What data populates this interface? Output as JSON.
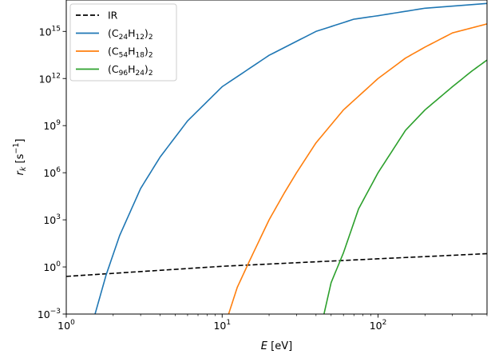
{
  "chart_data": {
    "type": "line",
    "xlabel": "E [eV]",
    "xlabel_parts": {
      "var": "E",
      "unit": " [eV]"
    },
    "ylabel": "r_k [s^-1]",
    "xscale": "log",
    "yscale": "log",
    "xlim": [
      1,
      500
    ],
    "ylim": [
      0.001,
      1e+17
    ],
    "x_ticks": [
      {
        "value": 1,
        "base": "10",
        "exp": "0"
      },
      {
        "value": 10,
        "base": "10",
        "exp": "1"
      },
      {
        "value": 100,
        "base": "10",
        "exp": "2"
      }
    ],
    "y_ticks": [
      {
        "value": 0.001,
        "base": "10",
        "exp": "−3"
      },
      {
        "value": 1,
        "base": "10",
        "exp": "0"
      },
      {
        "value": 1000,
        "base": "10",
        "exp": "3"
      },
      {
        "value": 1000000,
        "base": "10",
        "exp": "6"
      },
      {
        "value": 1000000000,
        "base": "10",
        "exp": "9"
      },
      {
        "value": 1000000000000,
        "base": "10",
        "exp": "12"
      },
      {
        "value": 1000000000000000,
        "base": "10",
        "exp": "15"
      }
    ],
    "legend_position": "top-left",
    "grid": false,
    "series": [
      {
        "name": "IR",
        "legend": [
          {
            "t": "IR",
            "s": ""
          }
        ],
        "color": "#000000",
        "dash": "dashed",
        "points": [
          [
            1,
            0.25
          ],
          [
            10,
            1.1
          ],
          [
            100,
            3.3
          ],
          [
            500,
            7.0
          ]
        ]
      },
      {
        "name": "(C24H12)2",
        "legend": [
          {
            "t": "(C",
            "s": ""
          },
          {
            "t": "24",
            "s": "sub"
          },
          {
            "t": "H",
            "s": ""
          },
          {
            "t": "12",
            "s": "sub"
          },
          {
            "t": ")",
            "s": ""
          },
          {
            "t": "2",
            "s": "sub"
          }
        ],
        "color": "#1f77b4",
        "dash": "solid",
        "points": [
          [
            1.53,
            0.001
          ],
          [
            1.8,
            0.3
          ],
          [
            2.2,
            100
          ],
          [
            3,
            100000
          ],
          [
            4,
            10000000
          ],
          [
            6,
            2000000000
          ],
          [
            10,
            300000000000
          ],
          [
            20,
            30000000000000
          ],
          [
            40,
            1000000000000000
          ],
          [
            70,
            6000000000000000
          ],
          [
            100,
            10000000000000000
          ],
          [
            200,
            30000000000000000
          ],
          [
            500,
            60000000000000000
          ]
        ]
      },
      {
        "name": "(C54H18)2",
        "legend": [
          {
            "t": "(C",
            "s": ""
          },
          {
            "t": "54",
            "s": "sub"
          },
          {
            "t": "H",
            "s": ""
          },
          {
            "t": "18",
            "s": "sub"
          },
          {
            "t": ")",
            "s": ""
          },
          {
            "t": "2",
            "s": "sub"
          }
        ],
        "color": "#ff7f0e",
        "dash": "solid",
        "points": [
          [
            11,
            0.001
          ],
          [
            12.5,
            0.05
          ],
          [
            15,
            2.5
          ],
          [
            20,
            1000
          ],
          [
            25,
            50000
          ],
          [
            30,
            1000000
          ],
          [
            40,
            80000000
          ],
          [
            60,
            10000000000
          ],
          [
            100,
            1000000000000
          ],
          [
            150,
            20000000000000
          ],
          [
            200,
            100000000000000
          ],
          [
            300,
            800000000000000
          ],
          [
            500,
            3000000000000000
          ]
        ]
      },
      {
        "name": "(C96H24)2",
        "legend": [
          {
            "t": "(C",
            "s": ""
          },
          {
            "t": "96",
            "s": "sub"
          },
          {
            "t": "H",
            "s": ""
          },
          {
            "t": "24",
            "s": "sub"
          },
          {
            "t": ")",
            "s": ""
          },
          {
            "t": "2",
            "s": "sub"
          }
        ],
        "color": "#2ca02c",
        "dash": "solid",
        "points": [
          [
            45,
            0.001
          ],
          [
            50,
            0.1
          ],
          [
            60,
            8
          ],
          [
            75,
            5000
          ],
          [
            100,
            1000000
          ],
          [
            150,
            500000000
          ],
          [
            200,
            10000000000
          ],
          [
            300,
            300000000000
          ],
          [
            400,
            3000000000000
          ],
          [
            500,
            15000000000000
          ]
        ]
      }
    ]
  }
}
